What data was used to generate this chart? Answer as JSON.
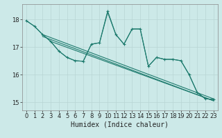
{
  "xlabel": "Humidex (Indice chaleur)",
  "bg_color": "#cce9e8",
  "grid_color": "#b8d5d4",
  "line_color": "#1e7b6e",
  "xlim": [
    -0.5,
    23.5
  ],
  "ylim": [
    14.7,
    18.55
  ],
  "yticks": [
    15,
    16,
    17,
    18
  ],
  "xticks": [
    0,
    1,
    2,
    3,
    4,
    5,
    6,
    7,
    8,
    9,
    10,
    11,
    12,
    13,
    14,
    15,
    16,
    17,
    18,
    19,
    20,
    21,
    22,
    23
  ],
  "line1_x": [
    0,
    1,
    2,
    3,
    4,
    5,
    6,
    7,
    8,
    9,
    10,
    11,
    12,
    13,
    14,
    15,
    16,
    17,
    18,
    19,
    20,
    21,
    22,
    23
  ],
  "line1_y": [
    17.95,
    17.75,
    17.45,
    17.2,
    16.85,
    16.62,
    16.5,
    16.48,
    17.1,
    17.15,
    18.3,
    17.45,
    17.1,
    17.65,
    17.65,
    16.3,
    16.62,
    16.55,
    16.55,
    16.5,
    16.0,
    15.35,
    15.12,
    15.1
  ],
  "line2_x": [
    0,
    1,
    2,
    3,
    4,
    5,
    6,
    7,
    8,
    9,
    10,
    11,
    12,
    13,
    14,
    15,
    16,
    17,
    18,
    19,
    20,
    21,
    22,
    23
  ],
  "line2_y": [
    17.95,
    17.75,
    17.45,
    17.2,
    16.85,
    16.62,
    16.5,
    16.48,
    17.1,
    17.15,
    18.25,
    17.45,
    17.1,
    17.65,
    17.65,
    16.3,
    16.62,
    16.55,
    16.55,
    16.5,
    16.0,
    15.35,
    15.12,
    15.1
  ],
  "line3_x": [
    2,
    23
  ],
  "line3_y": [
    17.45,
    15.12
  ],
  "line4_x": [
    2,
    23
  ],
  "line4_y": [
    17.38,
    15.05
  ],
  "line5_x": [
    3,
    23
  ],
  "line5_y": [
    17.2,
    15.05
  ],
  "xlabel_fontsize": 7,
  "tick_fontsize": 6
}
